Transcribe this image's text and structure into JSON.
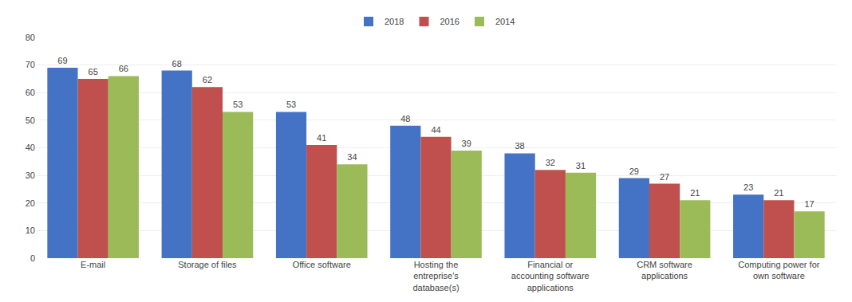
{
  "chart_data": {
    "type": "bar",
    "categories": [
      "E-mail",
      "Storage of files",
      "Office software",
      "Hosting the\nentreprise's\ndatabase(s)",
      "Financial or\naccounting software\napplications",
      "CRM software\napplications",
      "Computing power for\nown software"
    ],
    "series": [
      {
        "name": "2018",
        "color": "#4472C4",
        "values": [
          69,
          68,
          53,
          48,
          38,
          29,
          23
        ]
      },
      {
        "name": "2016",
        "color": "#C0504D",
        "values": [
          65,
          62,
          41,
          44,
          32,
          27,
          21
        ]
      },
      {
        "name": "2014",
        "color": "#9BBB59",
        "values": [
          66,
          53,
          34,
          39,
          31,
          21,
          17
        ]
      }
    ],
    "ylim": [
      0,
      80
    ],
    "yticks": [
      0,
      10,
      20,
      30,
      40,
      50,
      60,
      70,
      80
    ],
    "grid": true,
    "legend": "top",
    "data_labels": true
  }
}
